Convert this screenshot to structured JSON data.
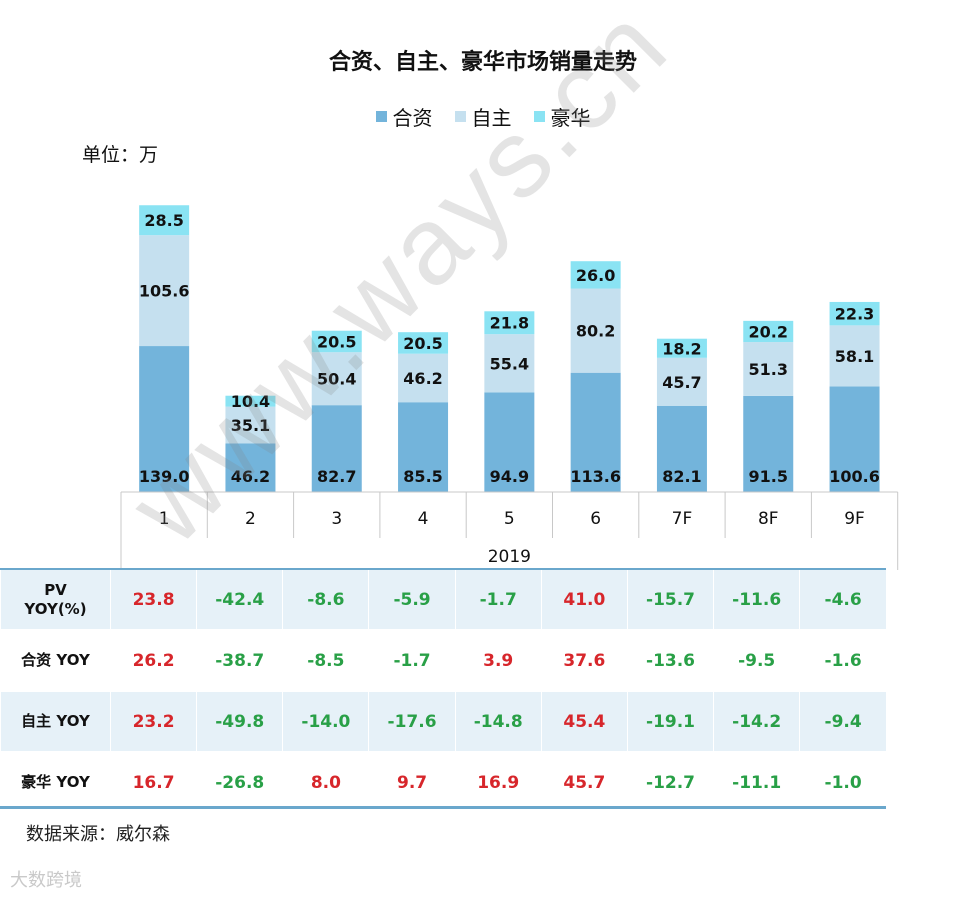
{
  "chart_data": {
    "type": "bar",
    "stacked": true,
    "title": "合资、自主、豪华市场销量走势",
    "unit_label": "单位：万",
    "categories": [
      "1",
      "2",
      "3",
      "4",
      "5",
      "6",
      "7F",
      "8F",
      "9F"
    ],
    "group_label": "2019",
    "series": [
      {
        "name": "合资",
        "color": "#73b4db",
        "values": [
          139.0,
          46.2,
          82.7,
          85.5,
          94.9,
          113.6,
          82.1,
          91.5,
          100.6
        ]
      },
      {
        "name": "自主",
        "color": "#c5e0ef",
        "values": [
          105.6,
          35.1,
          50.4,
          46.2,
          55.4,
          80.2,
          45.7,
          51.3,
          58.1
        ]
      },
      {
        "name": "豪华",
        "color": "#8ae3f3",
        "values": [
          28.5,
          10.4,
          20.5,
          20.5,
          21.8,
          26.0,
          18.2,
          20.2,
          22.3
        ]
      }
    ],
    "value_labels": [
      [
        "139.0",
        "46.2",
        "82.7",
        "85.5",
        "94.9",
        "113.6",
        "82.1",
        "91.5",
        "100.6"
      ],
      [
        "105.6",
        "35.1",
        "50.4",
        "46.2",
        "55.4",
        "80.2",
        "45.7",
        "51.3",
        "58.1"
      ],
      [
        "28.5",
        "10.4",
        "20.5",
        "20.5",
        "21.8",
        "26.0",
        "18.2",
        "20.2",
        "22.3"
      ]
    ],
    "legend_position": "top-center",
    "grid": false
  },
  "table": {
    "rows": [
      {
        "label_line1": "PV",
        "label_line2": "YOY(%)",
        "values": [
          "23.8",
          "-42.4",
          "-8.6",
          "-5.9",
          "-1.7",
          "41.0",
          "-15.7",
          "-11.6",
          "-4.6"
        ]
      },
      {
        "label_line1": "合资 YOY",
        "label_line2": "",
        "values": [
          "26.2",
          "-38.7",
          "-8.5",
          "-1.7",
          "3.9",
          "37.6",
          "-13.6",
          "-9.5",
          "-1.6"
        ]
      },
      {
        "label_line1": "自主 YOY",
        "label_line2": "",
        "values": [
          "23.2",
          "-49.8",
          "-14.0",
          "-17.6",
          "-14.8",
          "45.4",
          "-19.1",
          "-14.2",
          "-9.4"
        ]
      },
      {
        "label_line1": "豪华 YOY",
        "label_line2": "",
        "values": [
          "16.7",
          "-26.8",
          "8.0",
          "9.7",
          "16.9",
          "45.7",
          "-12.7",
          "-11.1",
          "-1.0"
        ]
      }
    ],
    "positive_color": "#d7262b",
    "negative_color": "#29a047"
  },
  "source_label": "数据来源：威尔森",
  "watermark": "www.ways.cn",
  "logo_text": "大数跨境"
}
